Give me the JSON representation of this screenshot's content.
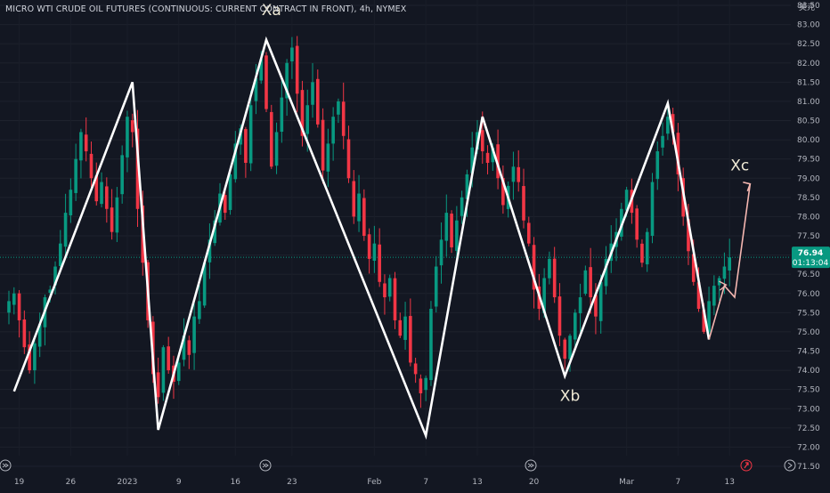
{
  "title": "MICRO WTI CRUDE OIL FUTURES (CONTINUOUS: CURRENT CONTRACT IN FRONT), 4h, NYMEX",
  "currency_label": "美元",
  "price_badge": {
    "value": "76.94",
    "countdown": "01:13:04",
    "color": "#089981"
  },
  "colors": {
    "background": "#131722",
    "up": "#089981",
    "down": "#f23645",
    "wave": "#ffffff",
    "projection": "#f5b7b1"
  },
  "icons": {
    "date-range-left": "goto-icon",
    "date-range-mid1": "goto-icon",
    "date-range-mid2": "goto-icon",
    "date-range-right": "scroll-icon",
    "flag": "flag-icon"
  },
  "chart_data": {
    "type": "candlestick",
    "instrument": "MICRO WTI CRUDE OIL FUTURES (CONTINUOUS: CURRENT CONTRACT IN FRONT)",
    "interval": "4h",
    "exchange": "NYMEX",
    "ylim": [
      71.5,
      83.5
    ],
    "y_ticks": [
      "71.50",
      "72.00",
      "72.50",
      "73.00",
      "73.50",
      "74.00",
      "74.50",
      "75.00",
      "75.50",
      "76.00",
      "76.50",
      "77.00",
      "77.50",
      "78.00",
      "78.50",
      "79.00",
      "79.50",
      "80.00",
      "80.50",
      "81.00",
      "81.50",
      "82.00",
      "82.50",
      "83.00",
      "83.50"
    ],
    "x_ticks": [
      {
        "label": "19",
        "idx": 2
      },
      {
        "label": "26",
        "idx": 12
      },
      {
        "label": "2023",
        "idx": 23
      },
      {
        "label": "9",
        "idx": 33
      },
      {
        "label": "16",
        "idx": 44
      },
      {
        "label": "23",
        "idx": 55
      },
      {
        "label": "Feb",
        "idx": 71
      },
      {
        "label": "7",
        "idx": 81
      },
      {
        "label": "13",
        "idx": 91
      },
      {
        "label": "20",
        "idx": 102
      },
      {
        "label": "Mar",
        "idx": 120
      },
      {
        "label": "7",
        "idx": 130
      },
      {
        "label": "13",
        "idx": 140
      }
    ],
    "last_price": 76.94,
    "wave_points": [
      {
        "idx": 1,
        "price": 73.45
      },
      {
        "idx": 24,
        "price": 81.5
      },
      {
        "idx": 29,
        "price": 72.45
      },
      {
        "idx": 50,
        "price": 82.6
      },
      {
        "idx": 81,
        "price": 72.3
      },
      {
        "idx": 92,
        "price": 80.6
      },
      {
        "idx": 108,
        "price": 73.85
      },
      {
        "idx": 128,
        "price": 80.95
      },
      {
        "idx": 136,
        "price": 74.8
      }
    ],
    "projection": [
      {
        "idx": 136,
        "price": 74.8
      },
      {
        "idx": 139,
        "price": 76.2
      },
      {
        "idx": 141,
        "price": 75.9
      },
      {
        "idx": 144,
        "price": 78.85
      }
    ],
    "annotations": [
      {
        "text": "Xa",
        "idx": 51,
        "price": 83.25
      },
      {
        "text": "Xb",
        "idx": 109,
        "price": 73.2
      },
      {
        "text": "Xc",
        "idx": 142,
        "price": 79.2
      }
    ],
    "close_path": [
      75.8,
      76.0,
      75.3,
      74.6,
      74.0,
      74.7,
      75.2,
      75.9,
      76.1,
      76.7,
      77.3,
      78.1,
      78.7,
      79.5,
      80.2,
      79.7,
      79.0,
      78.4,
      78.9,
      78.2,
      77.6,
      78.5,
      79.6,
      80.6,
      80.2,
      78.2,
      76.8,
      75.3,
      73.9,
      73.3,
      74.6,
      74.0,
      73.7,
      74.2,
      74.9,
      74.4,
      75.4,
      75.8,
      76.8,
      77.4,
      77.9,
      78.6,
      78.1,
      79.1,
      79.9,
      80.3,
      79.4,
      80.9,
      81.6,
      82.1,
      80.8,
      79.3,
      80.2,
      81.1,
      82.0,
      82.4,
      81.2,
      80.1,
      80.9,
      81.5,
      80.4,
      79.2,
      79.9,
      80.6,
      81.0,
      80.1,
      79.0,
      78.0,
      78.6,
      77.5,
      76.9,
      77.3,
      76.3,
      75.9,
      76.4,
      75.3,
      74.9,
      75.4,
      74.2,
      73.9,
      73.4,
      73.8,
      75.6,
      76.7,
      77.4,
      78.1,
      77.2,
      77.9,
      78.5,
      79.1,
      79.8,
      80.2,
      79.7,
      79.4,
      79.8,
      79.0,
      78.3,
      78.8,
      79.3,
      78.9,
      77.9,
      77.3,
      76.1,
      75.6,
      76.4,
      76.9,
      75.9,
      74.9,
      74.3,
      74.9,
      75.5,
      75.9,
      76.6,
      75.9,
      75.4,
      76.3,
      76.9,
      77.3,
      77.6,
      78.2,
      78.7,
      78.1,
      77.4,
      76.8,
      77.6,
      78.9,
      79.7,
      80.1,
      80.6,
      80.2,
      79.1,
      78.0,
      77.1,
      76.3,
      75.6,
      75.0,
      75.8,
      76.2,
      76.4,
      76.7,
      76.94
    ]
  }
}
